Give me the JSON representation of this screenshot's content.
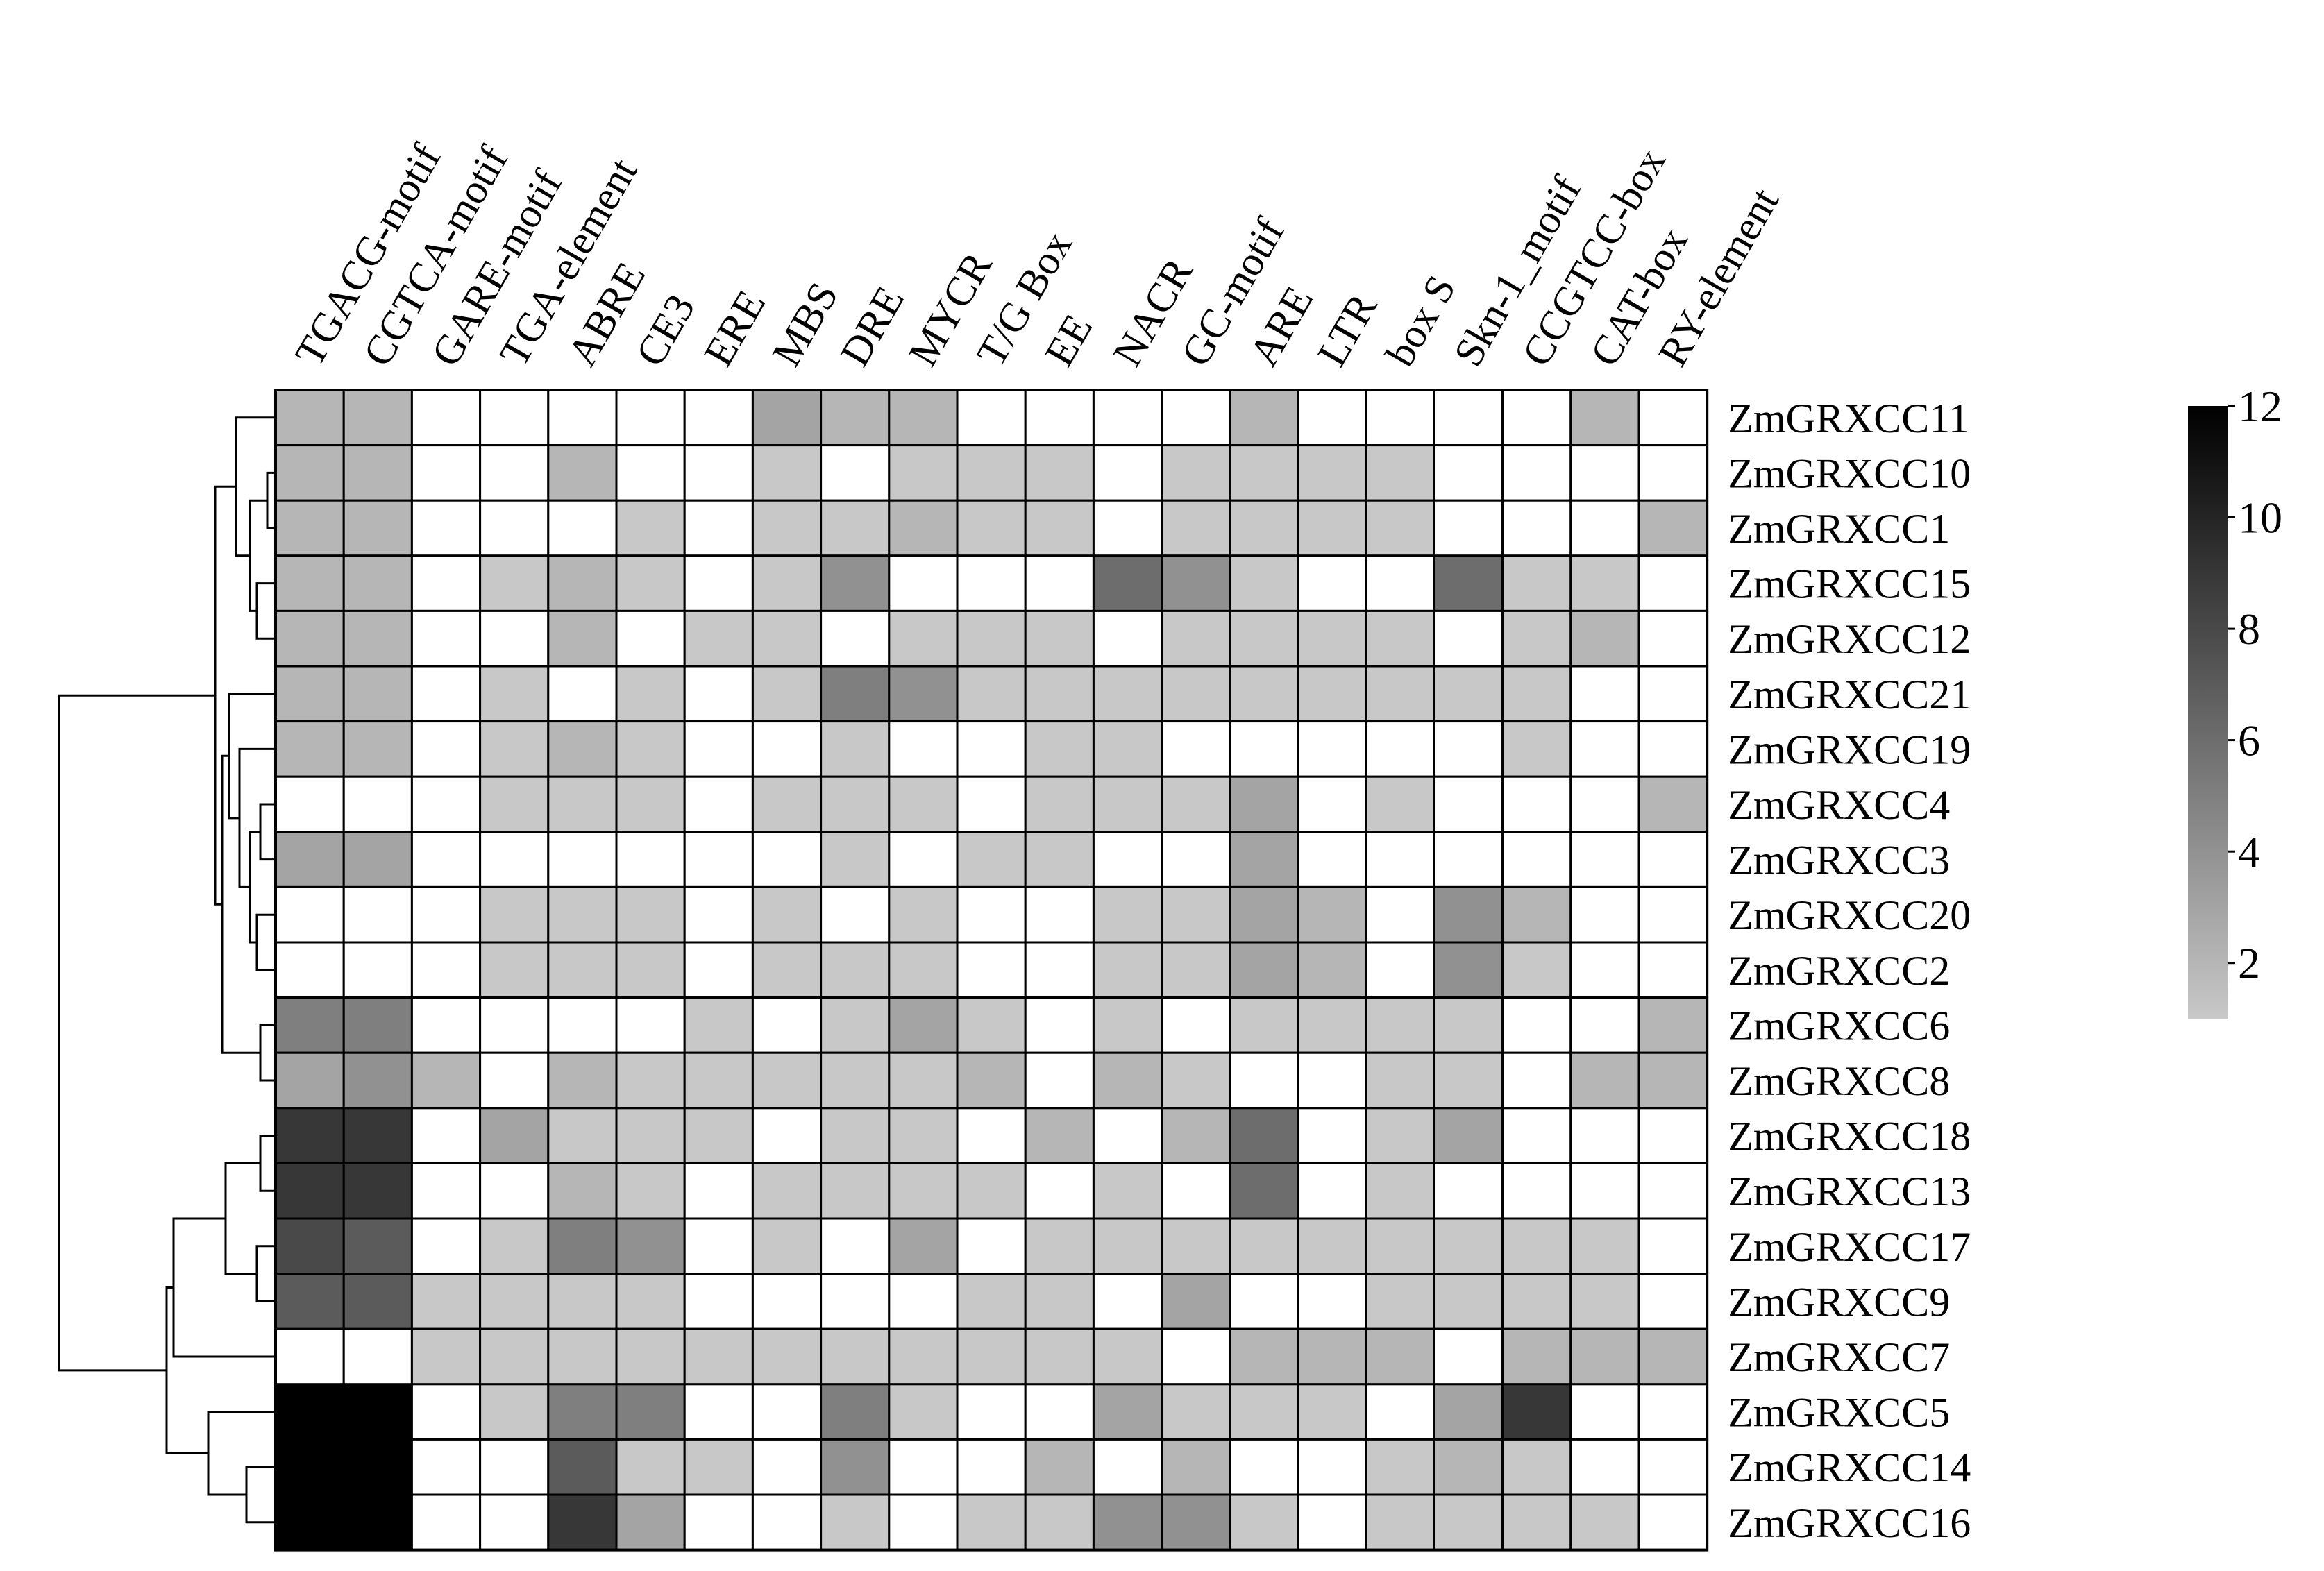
{
  "chart_data": {
    "type": "heatmap",
    "title": "",
    "xlabel": "",
    "ylabel": "",
    "columns": [
      "TGACG-motif",
      "CGTCA-motif",
      "GARE-motif",
      "TGA-element",
      "ABRE",
      "CE3",
      "ERE",
      "MBS",
      "DRE",
      "MYCR",
      "T/G Box",
      "EE",
      "NACR",
      "GC-motif",
      "ARE",
      "LTR",
      "box S",
      "Skn-1_motif",
      "CCGTCC-box",
      "CAT-box",
      "RY-element"
    ],
    "rows": [
      "ZmGRXCC11",
      "ZmGRXCC10",
      "ZmGRXCC1",
      "ZmGRXCC15",
      "ZmGRXCC12",
      "ZmGRXCC21",
      "ZmGRXCC19",
      "ZmGRXCC4",
      "ZmGRXCC3",
      "ZmGRXCC20",
      "ZmGRXCC2",
      "ZmGRXCC6",
      "ZmGRXCC8",
      "ZmGRXCC18",
      "ZmGRXCC13",
      "ZmGRXCC17",
      "ZmGRXCC9",
      "ZmGRXCC7",
      "ZmGRXCC5",
      "ZmGRXCC14",
      "ZmGRXCC16"
    ],
    "values": [
      [
        2,
        2,
        0,
        0,
        0,
        0,
        0,
        3,
        2,
        2,
        0,
        0,
        0,
        0,
        2,
        0,
        0,
        0,
        0,
        2,
        0
      ],
      [
        2,
        2,
        0,
        0,
        2,
        0,
        0,
        1,
        0,
        1,
        1,
        1,
        0,
        1,
        1,
        1,
        1,
        0,
        0,
        0,
        0
      ],
      [
        2,
        2,
        0,
        0,
        0,
        1,
        0,
        1,
        1,
        2,
        1,
        1,
        0,
        1,
        1,
        1,
        1,
        0,
        0,
        0,
        2
      ],
      [
        2,
        2,
        0,
        1,
        2,
        1,
        0,
        1,
        4,
        0,
        0,
        0,
        6,
        4,
        1,
        0,
        0,
        6,
        1,
        1,
        0
      ],
      [
        2,
        2,
        0,
        0,
        2,
        0,
        1,
        1,
        0,
        1,
        1,
        1,
        0,
        1,
        1,
        1,
        1,
        0,
        1,
        2,
        0
      ],
      [
        2,
        2,
        0,
        1,
        0,
        1,
        0,
        1,
        5,
        4,
        1,
        1,
        1,
        1,
        1,
        1,
        1,
        1,
        1,
        0,
        0
      ],
      [
        2,
        2,
        0,
        1,
        2,
        1,
        0,
        0,
        1,
        0,
        0,
        1,
        1,
        0,
        0,
        0,
        0,
        0,
        1,
        0,
        0
      ],
      [
        0,
        0,
        0,
        1,
        1,
        1,
        0,
        1,
        1,
        1,
        0,
        1,
        1,
        1,
        3,
        0,
        1,
        0,
        0,
        0,
        2
      ],
      [
        3,
        3,
        0,
        0,
        0,
        0,
        0,
        0,
        1,
        0,
        1,
        1,
        0,
        0,
        3,
        0,
        0,
        0,
        0,
        0,
        0
      ],
      [
        0,
        0,
        0,
        1,
        1,
        1,
        0,
        1,
        0,
        1,
        0,
        0,
        1,
        1,
        3,
        2,
        0,
        4,
        2,
        0,
        0
      ],
      [
        0,
        0,
        0,
        1,
        1,
        1,
        0,
        1,
        1,
        1,
        0,
        0,
        1,
        1,
        3,
        2,
        0,
        4,
        1,
        0,
        0
      ],
      [
        5,
        5,
        0,
        0,
        0,
        0,
        1,
        0,
        1,
        3,
        1,
        0,
        1,
        0,
        1,
        1,
        1,
        1,
        0,
        0,
        2
      ],
      [
        3,
        4,
        2,
        0,
        2,
        1,
        1,
        1,
        1,
        1,
        2,
        0,
        2,
        1,
        0,
        0,
        1,
        1,
        0,
        2,
        2
      ],
      [
        9,
        9,
        0,
        3,
        1,
        1,
        1,
        0,
        1,
        1,
        0,
        2,
        0,
        2,
        6,
        0,
        1,
        3,
        0,
        0,
        0
      ],
      [
        9,
        9,
        0,
        0,
        2,
        1,
        0,
        1,
        1,
        1,
        1,
        0,
        1,
        0,
        6,
        0,
        1,
        0,
        0,
        0,
        0
      ],
      [
        8,
        7,
        0,
        1,
        5,
        4,
        0,
        1,
        0,
        3,
        0,
        1,
        1,
        1,
        1,
        1,
        1,
        1,
        1,
        1,
        0
      ],
      [
        7,
        7,
        1,
        1,
        1,
        1,
        0,
        0,
        0,
        0,
        1,
        1,
        0,
        3,
        0,
        0,
        1,
        1,
        1,
        1,
        0
      ],
      [
        0,
        0,
        1,
        1,
        1,
        1,
        1,
        1,
        1,
        1,
        1,
        1,
        1,
        0,
        2,
        2,
        2,
        0,
        2,
        2,
        2
      ],
      [
        12,
        12,
        0,
        1,
        5,
        5,
        0,
        0,
        5,
        1,
        0,
        0,
        3,
        1,
        1,
        1,
        0,
        3,
        9,
        0,
        0
      ],
      [
        12,
        12,
        0,
        0,
        7,
        1,
        1,
        0,
        4,
        0,
        0,
        2,
        0,
        2,
        0,
        0,
        1,
        2,
        1,
        0,
        0
      ],
      [
        12,
        12,
        0,
        0,
        9,
        3,
        0,
        0,
        1,
        0,
        1,
        1,
        4,
        4,
        1,
        0,
        1,
        1,
        1,
        1,
        0
      ]
    ],
    "colorbar": {
      "min": 1,
      "max": 12,
      "ticks": [
        "2",
        "4",
        "6",
        "8",
        "10",
        "12"
      ],
      "low_color": "#c8c8c8",
      "high_color": "#000000",
      "zero_color": "#ffffff"
    },
    "dendrogram": "left",
    "grid": true
  }
}
